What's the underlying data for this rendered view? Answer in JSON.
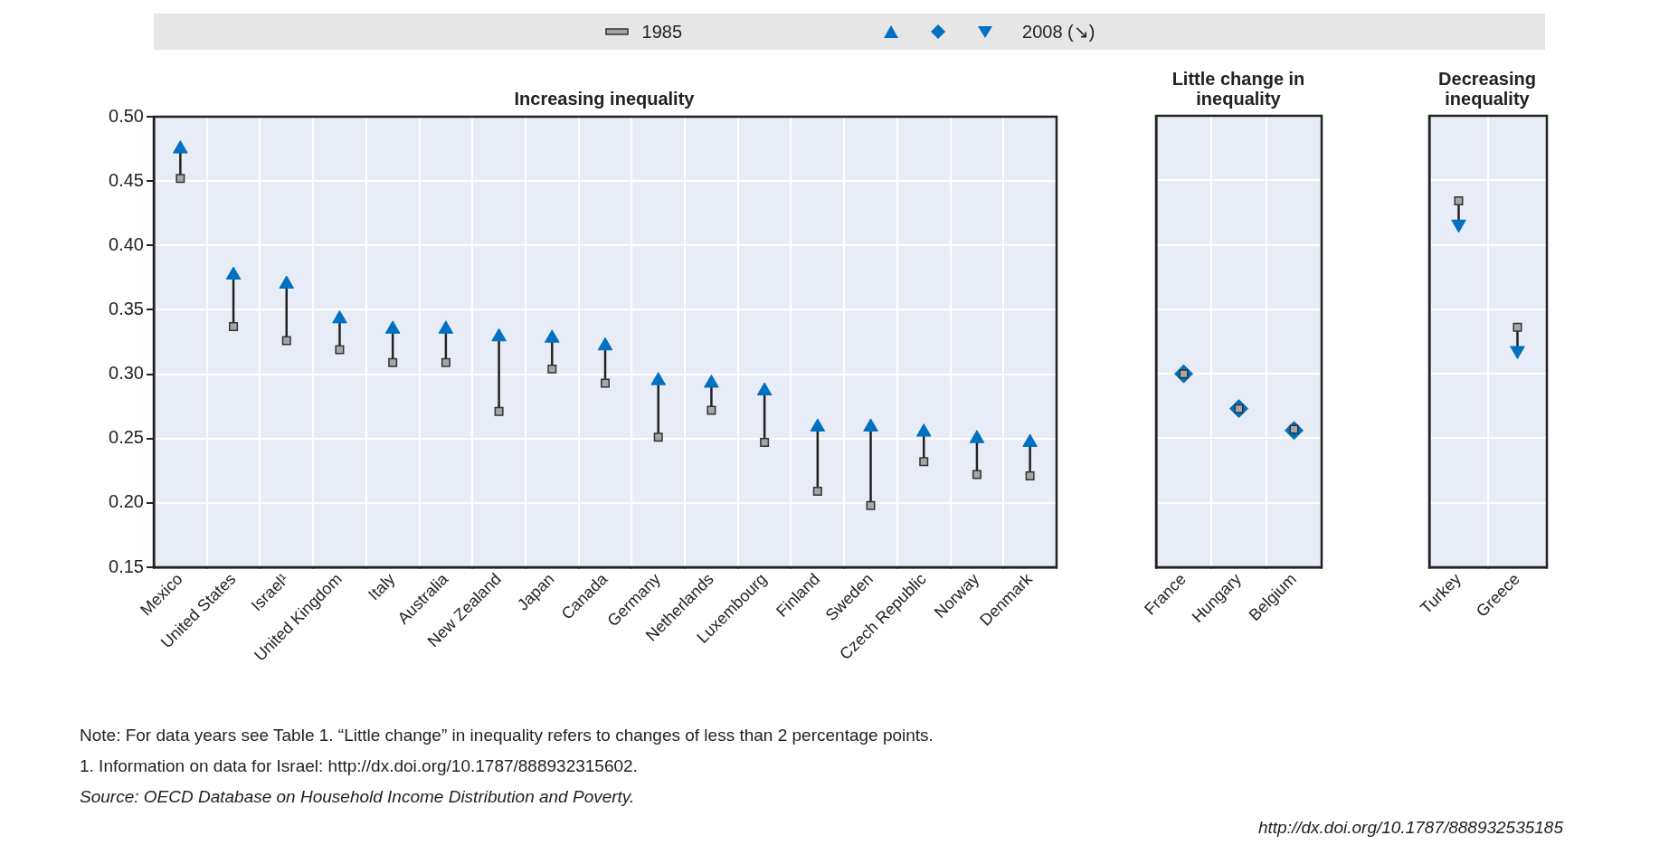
{
  "chart_data": [
    {
      "type": "scatter",
      "title": "Increasing inequality",
      "categories": [
        "Mexico",
        "United States",
        "Israel¹",
        "United Kingdom",
        "Italy",
        "Australia",
        "New Zealand",
        "Japan",
        "Canada",
        "Germany",
        "Netherlands",
        "Luxembourg",
        "Finland",
        "Sweden",
        "Czech Republic",
        "Norway",
        "Denmark"
      ],
      "series": [
        {
          "name": "1985",
          "color": "#a6a6a6",
          "marker": "square",
          "values": [
            0.452,
            0.337,
            0.326,
            0.319,
            0.309,
            0.309,
            0.271,
            0.304,
            0.293,
            0.251,
            0.272,
            0.247,
            0.209,
            0.198,
            0.232,
            0.222,
            0.221
          ]
        },
        {
          "name": "2008 (↘)",
          "color": "#0070c0",
          "marker": "triangle",
          "values": [
            0.475,
            0.377,
            0.37,
            0.343,
            0.335,
            0.335,
            0.329,
            0.328,
            0.322,
            0.295,
            0.293,
            0.287,
            0.259,
            0.259,
            0.255,
            0.25,
            0.247
          ]
        }
      ],
      "ylim": [
        0.15,
        0.5
      ],
      "yticks": [
        0.15,
        {
          "value": 0.2,
          "label": "0.20"
        },
        0.25,
        {
          "value": 0.3,
          "label": "0.30"
        },
        0.35,
        {
          "value": 0.4,
          "label": "0.40"
        },
        0.45,
        {
          "value": 0.5,
          "label": "0.50"
        }
      ],
      "grid": true,
      "legend": "top",
      "annotations": [
        "Note: For data years see Table 1. “Little change” in inequality refers to changes of less than 2 percentage points.",
        "1. Information on data for Israel: http://dx.doi.org/10.1787/888932315602.",
        "Source: OECD Database on Household Income Distribution and Poverty.",
        "http://dx.doi.org/10.1787/888932535185"
      ]
    },
    {
      "type": "scatter",
      "title": "Little change in inequality",
      "categories": [
        "France",
        "Hungary",
        "Belgium"
      ],
      "series": [
        {
          "color": "#a6a6a6",
          "marker": "square",
          "values": [
            0.3,
            0.273,
            0.257
          ]
        },
        {
          "color": "#0070c0",
          "marker": "diamond",
          "values": [
            0.3,
            0.273,
            0.256
          ]
        }
      ],
      "ylim": [
        0.15,
        0.5
      ],
      "yticks": [
        0.15,
        0.2,
        0.25,
        0.3,
        0.35,
        0.4,
        0.45,
        0.5
      ],
      "grid": true,
      "tick_labels": "x"
    },
    {
      "type": "scatter",
      "title": "Decreasing inequality",
      "categories": [
        "Turkey",
        "Greece"
      ],
      "series": [
        {
          "color": "#a6a6a6",
          "marker": "square",
          "values": [
            0.434,
            0.336
          ]
        },
        {
          "color": "#0070c0",
          "marker": "triangle",
          "values": [
            0.416,
            0.318
          ]
        }
      ],
      "ylim": [
        0.15,
        0.5
      ],
      "yticks": [
        0.15,
        0.2,
        0.25,
        0.3,
        0.35,
        0.4,
        0.45,
        0.5
      ],
      "grid": true,
      "tick_labels": "x"
    }
  ]
}
